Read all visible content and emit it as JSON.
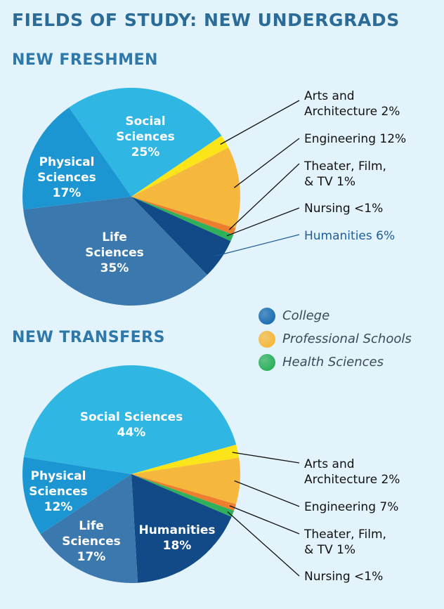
{
  "title": "FIELDS OF STUDY: NEW UNDERGRADS",
  "sections": {
    "freshmen": "NEW FRESHMEN",
    "transfers": "NEW TRANSFERS"
  },
  "legend": [
    {
      "label": "College",
      "color": "#1e6fb3"
    },
    {
      "label": "Professional Schools",
      "color": "#f5b83c"
    },
    {
      "label": "Health Sciences",
      "color": "#2fb15c"
    }
  ],
  "chart_data": [
    {
      "type": "pie",
      "title": "NEW FRESHMEN",
      "slices": [
        {
          "label": "Social Sciences",
          "value": 25,
          "display": "25%",
          "group": "College",
          "color": "#2fb6e2"
        },
        {
          "label": "Arts and Architecture",
          "value": 2,
          "display": "2%",
          "group": "Professional Schools",
          "color": "#fbe519"
        },
        {
          "label": "Engineering",
          "value": 12,
          "display": "12%",
          "group": "Professional Schools",
          "color": "#f5b83c"
        },
        {
          "label": "Theater, Film, & TV",
          "value": 1,
          "display": "1%",
          "group": "Professional Schools",
          "color": "#ee7e2f"
        },
        {
          "label": "Nursing",
          "value": 1,
          "display": "<1%",
          "group": "Health Sciences",
          "color": "#2fb15c"
        },
        {
          "label": "Humanities",
          "value": 6,
          "display": "6%",
          "group": "College",
          "color": "#114a87"
        },
        {
          "label": "Life Sciences",
          "value": 35,
          "display": "35%",
          "group": "College",
          "color": "#3b78ae"
        },
        {
          "label": "Physical Sciences",
          "value": 17,
          "display": "17%",
          "group": "College",
          "color": "#1c96d2"
        }
      ]
    },
    {
      "type": "pie",
      "title": "NEW TRANSFERS",
      "slices": [
        {
          "label": "Social Sciences",
          "value": 44,
          "display": "44%",
          "group": "College",
          "color": "#2fb6e2"
        },
        {
          "label": "Arts and Architecture",
          "value": 2,
          "display": "2%",
          "group": "Professional Schools",
          "color": "#fbe519"
        },
        {
          "label": "Engineering",
          "value": 7,
          "display": "7%",
          "group": "Professional Schools",
          "color": "#f5b83c"
        },
        {
          "label": "Theater, Film, & TV",
          "value": 1,
          "display": "1%",
          "group": "Professional Schools",
          "color": "#ee7e2f"
        },
        {
          "label": "Nursing",
          "value": 1,
          "display": "<1%",
          "group": "Health Sciences",
          "color": "#2fb15c"
        },
        {
          "label": "Humanities",
          "value": 18,
          "display": "18%",
          "group": "College",
          "color": "#114a87"
        },
        {
          "label": "Life Sciences",
          "value": 17,
          "display": "17%",
          "group": "College",
          "color": "#3b78ae"
        },
        {
          "label": "Physical Sciences",
          "value": 12,
          "display": "12%",
          "group": "College",
          "color": "#1c96d2"
        }
      ]
    }
  ]
}
